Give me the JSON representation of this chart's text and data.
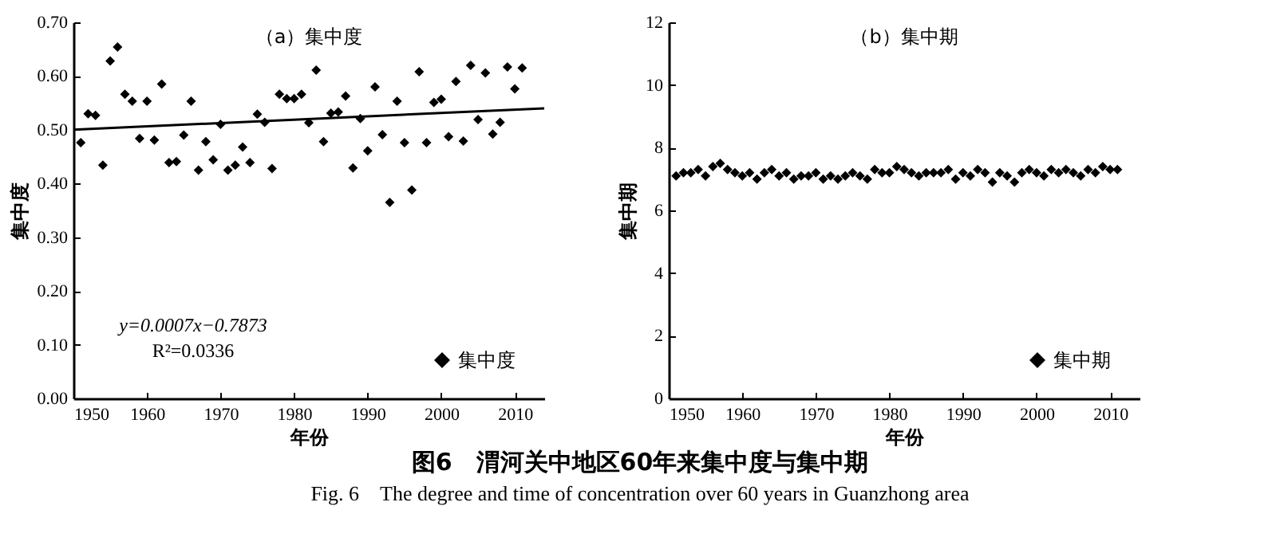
{
  "chart_data": [
    {
      "type": "scatter",
      "title": "（a）集中度",
      "xlabel": "年份",
      "ylabel": "集中度",
      "legend": "bottom right",
      "xlim": [
        1950,
        2014
      ],
      "xticks": [
        1950,
        1960,
        1970,
        1980,
        1990,
        2000,
        2010
      ],
      "ylim": [
        0,
        0.7
      ],
      "yticks": [
        {
          "value": 0,
          "label": "0.00"
        },
        {
          "value": 0.1,
          "label": "0.10"
        },
        {
          "value": 0.2,
          "label": "0.20"
        },
        {
          "value": 0.3,
          "label": "0.30"
        },
        {
          "value": 0.4,
          "label": "0.40"
        },
        {
          "value": 0.5,
          "label": "0.50"
        },
        {
          "value": 0.6,
          "label": "0.60"
        },
        {
          "value": 0.7,
          "label": "0.70"
        }
      ],
      "x": [
        1951,
        1952,
        1953,
        1954,
        1955,
        1956,
        1957,
        1958,
        1959,
        1960,
        1961,
        1962,
        1963,
        1964,
        1965,
        1966,
        1967,
        1968,
        1969,
        1970,
        1971,
        1972,
        1973,
        1974,
        1975,
        1976,
        1977,
        1978,
        1979,
        1980,
        1981,
        1982,
        1983,
        1984,
        1985,
        1986,
        1987,
        1988,
        1989,
        1990,
        1991,
        1992,
        1993,
        1994,
        1995,
        1996,
        1997,
        1998,
        1999,
        2000,
        2001,
        2002,
        2003,
        2004,
        2005,
        2006,
        2007,
        2008,
        2009,
        2010,
        2011
      ],
      "series": [
        {
          "name": "集中度",
          "color": "#000000",
          "marker": "diamond",
          "values": [
            0.476,
            0.53,
            0.527,
            0.434,
            0.628,
            0.654,
            0.566,
            0.553,
            0.484,
            0.553,
            0.481,
            0.585,
            0.439,
            0.441,
            0.49,
            0.553,
            0.425,
            0.478,
            0.444,
            0.51,
            0.425,
            0.434,
            0.468,
            0.439,
            0.529,
            0.514,
            0.428,
            0.566,
            0.558,
            0.558,
            0.566,
            0.513,
            0.611,
            0.478,
            0.531,
            0.533,
            0.563,
            0.429,
            0.521,
            0.461,
            0.58,
            0.491,
            0.365,
            0.553,
            0.476,
            0.388,
            0.608,
            0.476,
            0.551,
            0.557,
            0.487,
            0.59,
            0.479,
            0.62,
            0.519,
            0.606,
            0.492,
            0.514,
            0.617,
            0.576,
            0.615
          ]
        },
        {
          "type": "line",
          "color": "#000000",
          "x": [
            1950,
            2014
          ],
          "values": [
            0.5,
            0.54
          ]
        }
      ],
      "annotations": [
        "y=0.0007x−0.7873",
        "R²=0.0336",
        "图6　渭河关中地区60年来集中度与集中期",
        "Fig. 6　The degree and time of concentration over 60 years in Guanzhong area"
      ]
    },
    {
      "type": "scatter",
      "title": "（b）集中期",
      "xlabel": "年份",
      "ylabel": "集中期",
      "legend": "bottom right",
      "xlim": [
        1950,
        2014
      ],
      "xticks": [
        1950,
        1960,
        1970,
        1980,
        1990,
        2000,
        2010
      ],
      "ylim": [
        0,
        12
      ],
      "yticks": [
        0,
        2,
        4,
        6,
        8,
        10,
        12
      ],
      "x": [
        1951,
        1952,
        1953,
        1954,
        1955,
        1956,
        1957,
        1958,
        1959,
        1960,
        1961,
        1962,
        1963,
        1964,
        1965,
        1966,
        1967,
        1968,
        1969,
        1970,
        1971,
        1972,
        1973,
        1974,
        1975,
        1976,
        1977,
        1978,
        1979,
        1980,
        1981,
        1982,
        1983,
        1984,
        1985,
        1986,
        1987,
        1988,
        1989,
        1990,
        1991,
        1992,
        1993,
        1994,
        1995,
        1996,
        1997,
        1998,
        1999,
        2000,
        2001,
        2002,
        2003,
        2004,
        2005,
        2006,
        2007,
        2008,
        2009,
        2010,
        2011
      ],
      "series": [
        {
          "name": "集中期",
          "color": "#000000",
          "marker": "diamond",
          "values": [
            7.1,
            7.2,
            7.2,
            7.3,
            7.1,
            7.4,
            7.5,
            7.3,
            7.2,
            7.1,
            7.2,
            7.0,
            7.2,
            7.3,
            7.1,
            7.2,
            7.0,
            7.1,
            7.1,
            7.2,
            7.0,
            7.1,
            7.0,
            7.1,
            7.2,
            7.1,
            7.0,
            7.3,
            7.2,
            7.2,
            7.4,
            7.3,
            7.2,
            7.1,
            7.2,
            7.2,
            7.2,
            7.3,
            7.0,
            7.2,
            7.1,
            7.3,
            7.2,
            6.9,
            7.2,
            7.1,
            6.9,
            7.2,
            7.3,
            7.2,
            7.1,
            7.3,
            7.2,
            7.3,
            7.2,
            7.1,
            7.3,
            7.2,
            7.4,
            7.3,
            7.3
          ]
        }
      ]
    }
  ]
}
